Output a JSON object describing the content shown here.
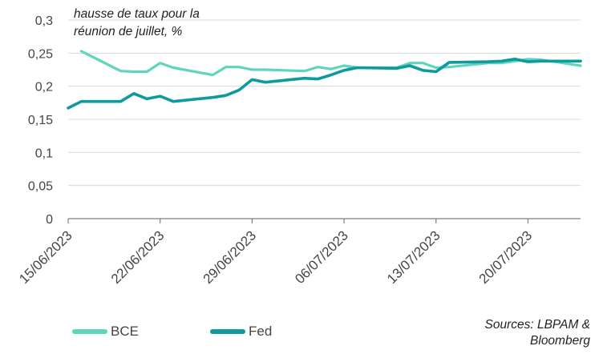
{
  "chart_data": {
    "type": "line",
    "title_lines": [
      "hausse de taux pour la",
      "réunion de juillet, %"
    ],
    "source_lines": [
      "Sources: LBPAM &",
      "Bloomberg"
    ],
    "xlabel": "",
    "ylabel": "",
    "ylim": [
      0,
      0.3
    ],
    "y_ticks": [
      {
        "value": 0,
        "label": "0"
      },
      {
        "value": 0.05,
        "label": "0,05"
      },
      {
        "value": 0.1,
        "label": "0,1"
      },
      {
        "value": 0.15,
        "label": "0,15"
      },
      {
        "value": 0.2,
        "label": "0,2"
      },
      {
        "value": 0.25,
        "label": "0,25"
      },
      {
        "value": 0.3,
        "label": "0,3"
      }
    ],
    "x_range": [
      "2023-06-15",
      "2023-07-24"
    ],
    "x_ticks": [
      {
        "date": "2023-06-15",
        "label": "15/06/2023"
      },
      {
        "date": "2023-06-22",
        "label": "22/06/2023"
      },
      {
        "date": "2023-06-29",
        "label": "29/06/2023"
      },
      {
        "date": "2023-07-06",
        "label": "06/07/2023"
      },
      {
        "date": "2023-07-13",
        "label": "13/07/2023"
      },
      {
        "date": "2023-07-20",
        "label": "20/07/2023"
      }
    ],
    "grid": "horizontal",
    "legend_position": "bottom-left",
    "series": [
      {
        "name": "BCE",
        "color": "#5ed6bc",
        "points": [
          {
            "x": "2023-06-16",
            "y": 0.253
          },
          {
            "x": "2023-06-19",
            "y": 0.223
          },
          {
            "x": "2023-06-20",
            "y": 0.222
          },
          {
            "x": "2023-06-21",
            "y": 0.222
          },
          {
            "x": "2023-06-22",
            "y": 0.235
          },
          {
            "x": "2023-06-23",
            "y": 0.228
          },
          {
            "x": "2023-06-26",
            "y": 0.217
          },
          {
            "x": "2023-06-27",
            "y": 0.229
          },
          {
            "x": "2023-06-28",
            "y": 0.229
          },
          {
            "x": "2023-06-29",
            "y": 0.225
          },
          {
            "x": "2023-06-30",
            "y": 0.225
          },
          {
            "x": "2023-07-03",
            "y": 0.223
          },
          {
            "x": "2023-07-04",
            "y": 0.229
          },
          {
            "x": "2023-07-05",
            "y": 0.226
          },
          {
            "x": "2023-07-06",
            "y": 0.231
          },
          {
            "x": "2023-07-07",
            "y": 0.228
          },
          {
            "x": "2023-07-10",
            "y": 0.228
          },
          {
            "x": "2023-07-11",
            "y": 0.235
          },
          {
            "x": "2023-07-12",
            "y": 0.235
          },
          {
            "x": "2023-07-13",
            "y": 0.228
          },
          {
            "x": "2023-07-14",
            "y": 0.229
          },
          {
            "x": "2023-07-17",
            "y": 0.235
          },
          {
            "x": "2023-07-18",
            "y": 0.235
          },
          {
            "x": "2023-07-19",
            "y": 0.238
          },
          {
            "x": "2023-07-20",
            "y": 0.241
          },
          {
            "x": "2023-07-21",
            "y": 0.24
          },
          {
            "x": "2023-07-24",
            "y": 0.231
          }
        ]
      },
      {
        "name": "Fed",
        "color": "#0f9a9e",
        "points": [
          {
            "x": "2023-06-15",
            "y": 0.167
          },
          {
            "x": "2023-06-16",
            "y": 0.177
          },
          {
            "x": "2023-06-19",
            "y": 0.177
          },
          {
            "x": "2023-06-20",
            "y": 0.189
          },
          {
            "x": "2023-06-21",
            "y": 0.181
          },
          {
            "x": "2023-06-22",
            "y": 0.185
          },
          {
            "x": "2023-06-23",
            "y": 0.177
          },
          {
            "x": "2023-06-26",
            "y": 0.183
          },
          {
            "x": "2023-06-27",
            "y": 0.186
          },
          {
            "x": "2023-06-28",
            "y": 0.194
          },
          {
            "x": "2023-06-29",
            "y": 0.21
          },
          {
            "x": "2023-06-30",
            "y": 0.206
          },
          {
            "x": "2023-07-03",
            "y": 0.212
          },
          {
            "x": "2023-07-04",
            "y": 0.211
          },
          {
            "x": "2023-07-05",
            "y": 0.217
          },
          {
            "x": "2023-07-06",
            "y": 0.224
          },
          {
            "x": "2023-07-07",
            "y": 0.228
          },
          {
            "x": "2023-07-10",
            "y": 0.227
          },
          {
            "x": "2023-07-11",
            "y": 0.231
          },
          {
            "x": "2023-07-12",
            "y": 0.224
          },
          {
            "x": "2023-07-13",
            "y": 0.222
          },
          {
            "x": "2023-07-14",
            "y": 0.236
          },
          {
            "x": "2023-07-17",
            "y": 0.237
          },
          {
            "x": "2023-07-18",
            "y": 0.238
          },
          {
            "x": "2023-07-19",
            "y": 0.241
          },
          {
            "x": "2023-07-20",
            "y": 0.237
          },
          {
            "x": "2023-07-21",
            "y": 0.238
          },
          {
            "x": "2023-07-24",
            "y": 0.238
          }
        ]
      }
    ]
  }
}
